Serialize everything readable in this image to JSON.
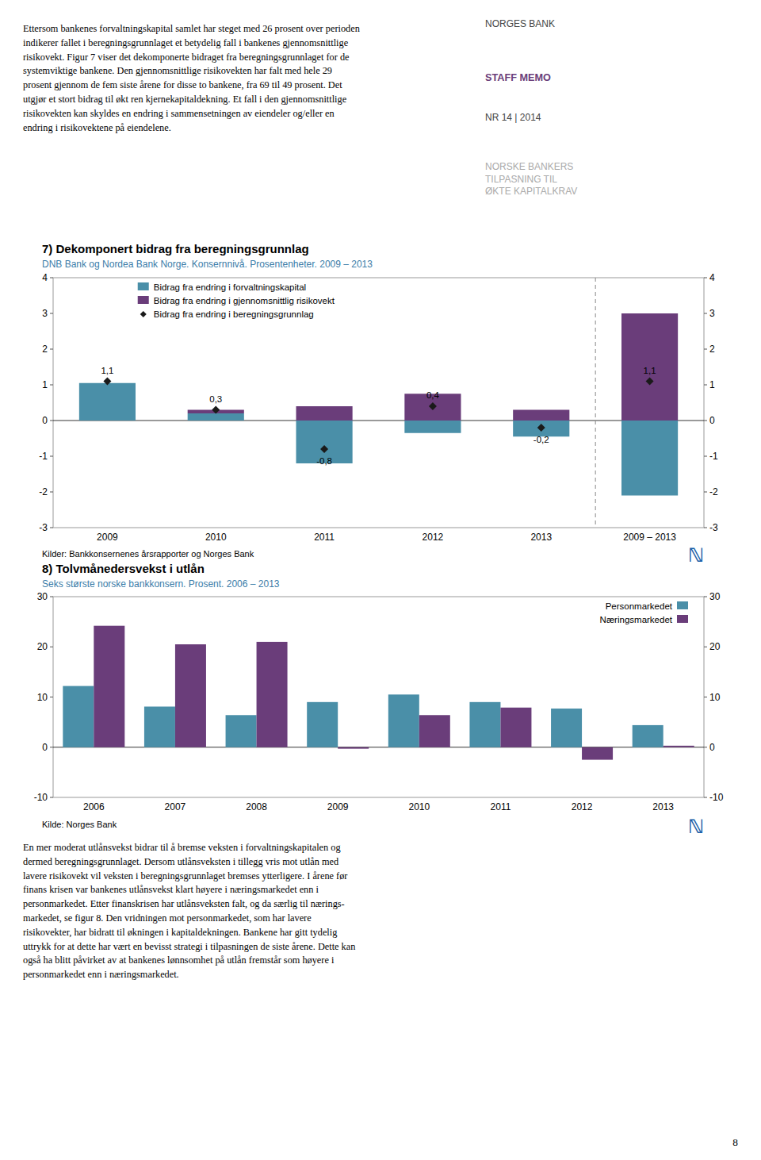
{
  "page_text_top": "Ettersom bankenes forvaltningskapital samlet har steget med 26 prosent over perioden\nindikerer fallet i beregningsgrunnlaget et betydelig fall i bankenes gjennomsnittlige\nrisikovekt. Figur 7 viser det dekomponerte bidraget fra beregningsgrunnlaget for de\nsystemviktige bankene. Den gjennomsnittlige risikovekten har falt med hele 29\nprosent gjennom de fem siste årene for disse to bankene, fra 69 til 49 prosent. Det\nutgjør et stort bidrag til økt ren kjernekapitaldekning. Et fall i den gjennomsnittlige\nrisikovekten kan skyldes en endring i sammensetningen av eiendeler og/eller en\nendring i risikovektene på eiendelene.",
  "header": [
    "NORGES BANK",
    "STAFF MEMO",
    "NR 14 | 2014",
    "NORSKE BANKERS\nTILPASNING TIL\nØKTE KAPITALKRAV"
  ],
  "logo": "ℕ",
  "bottom_text": "En mer moderat utlånsvekst bidrar til å bremse veksten i forvaltningskapitalen og\ndermed beregningsgrunnlaget. Dersom utlånsveksten i tillegg vris mot utlån med\nlavere risikovekt vil veksten i beregningsgrunnlaget bremses ytterligere. I årene før\nfinans krisen var bankenes utlånsvekst klart høyere i næringsmarkedet enn i\npersonmarkedet. Etter finanskrisen har utlånsveksten falt, og da særlig til nærings-\nmarkedet, se figur 8. Den vridningen mot personmarkedet, som har lavere\nrisikovekter, har bidratt til økningen i kapitaldekningen. Bankene har gitt tydelig\nuttrykk for at dette har vært en bevisst strategi i tilpasningen de siste årene. Dette kan\nogså ha blitt påvirket av at bankenes lønnsomhet på utlån fremstår som høyere i\npersonmarkedet enn i næringsmarkedet.",
  "page_number": "8",
  "chart_data": [
    {
      "type": "bar",
      "stacked": true,
      "title": "7) Dekomponert bidrag fra beregningsgrunnlag",
      "subtitle": "DNB Bank og Nordea Bank Norge. Konsernnivå. Prosentenheter. 2009 – 2013",
      "source": "Kilder: Bankkonsernenes årsrapporter og Norges Bank",
      "categories": [
        "2009",
        "2010",
        "2011",
        "2012",
        "2013",
        "2009 – 2013"
      ],
      "series": [
        {
          "name": "Bidrag fra endring i forvaltningskapital",
          "color": "#4a8fa8",
          "values": [
            1.05,
            0.2,
            -1.2,
            -0.35,
            -0.45,
            -2.1
          ]
        },
        {
          "name": "Bidrag fra endring i gjennomsnittlig risikovekt",
          "color": "#6a3d7a",
          "values": [
            0.0,
            0.1,
            0.4,
            0.75,
            0.3,
            3.0
          ]
        },
        {
          "name": "Bidrag fra endring i beregningsgrunnlag",
          "color": "#1a1a1a",
          "type": "scatter",
          "marker": "diamond",
          "data_labels": true,
          "values": [
            1.1,
            0.3,
            -0.8,
            0.4,
            -0.2,
            1.1
          ],
          "value_labels": [
            "1,1",
            "0,3",
            "-0,8",
            "0,4",
            "-0,2",
            "1,1"
          ]
        }
      ],
      "ylim": [
        -3,
        4
      ],
      "yticks": [
        -3,
        -2,
        -1,
        0,
        1,
        2,
        3,
        4
      ],
      "legend": "upper left",
      "grid": false
    },
    {
      "type": "bar",
      "title": "8) Tolvmånedersvekst i utlån",
      "subtitle": "Seks største norske bankkonsern. Prosent. 2006 – 2013",
      "source": "Kilde: Norges Bank",
      "categories": [
        "2006",
        "2007",
        "2008",
        "2009",
        "2010",
        "2011",
        "2012",
        "2013"
      ],
      "series": [
        {
          "name": "Personmarkedet",
          "color": "#4a8fa8",
          "values": [
            12.2,
            8.1,
            6.4,
            9.0,
            10.5,
            9.0,
            7.7,
            4.4
          ]
        },
        {
          "name": "Næringsmarkedet",
          "color": "#6a3d7a",
          "values": [
            24.2,
            20.5,
            21.0,
            -0.3,
            6.4,
            7.9,
            -2.5,
            0.3
          ]
        }
      ],
      "ylim": [
        -10,
        30
      ],
      "yticks": [
        -10,
        0,
        10,
        20,
        30
      ],
      "legend": "upper right",
      "grid": false
    }
  ]
}
